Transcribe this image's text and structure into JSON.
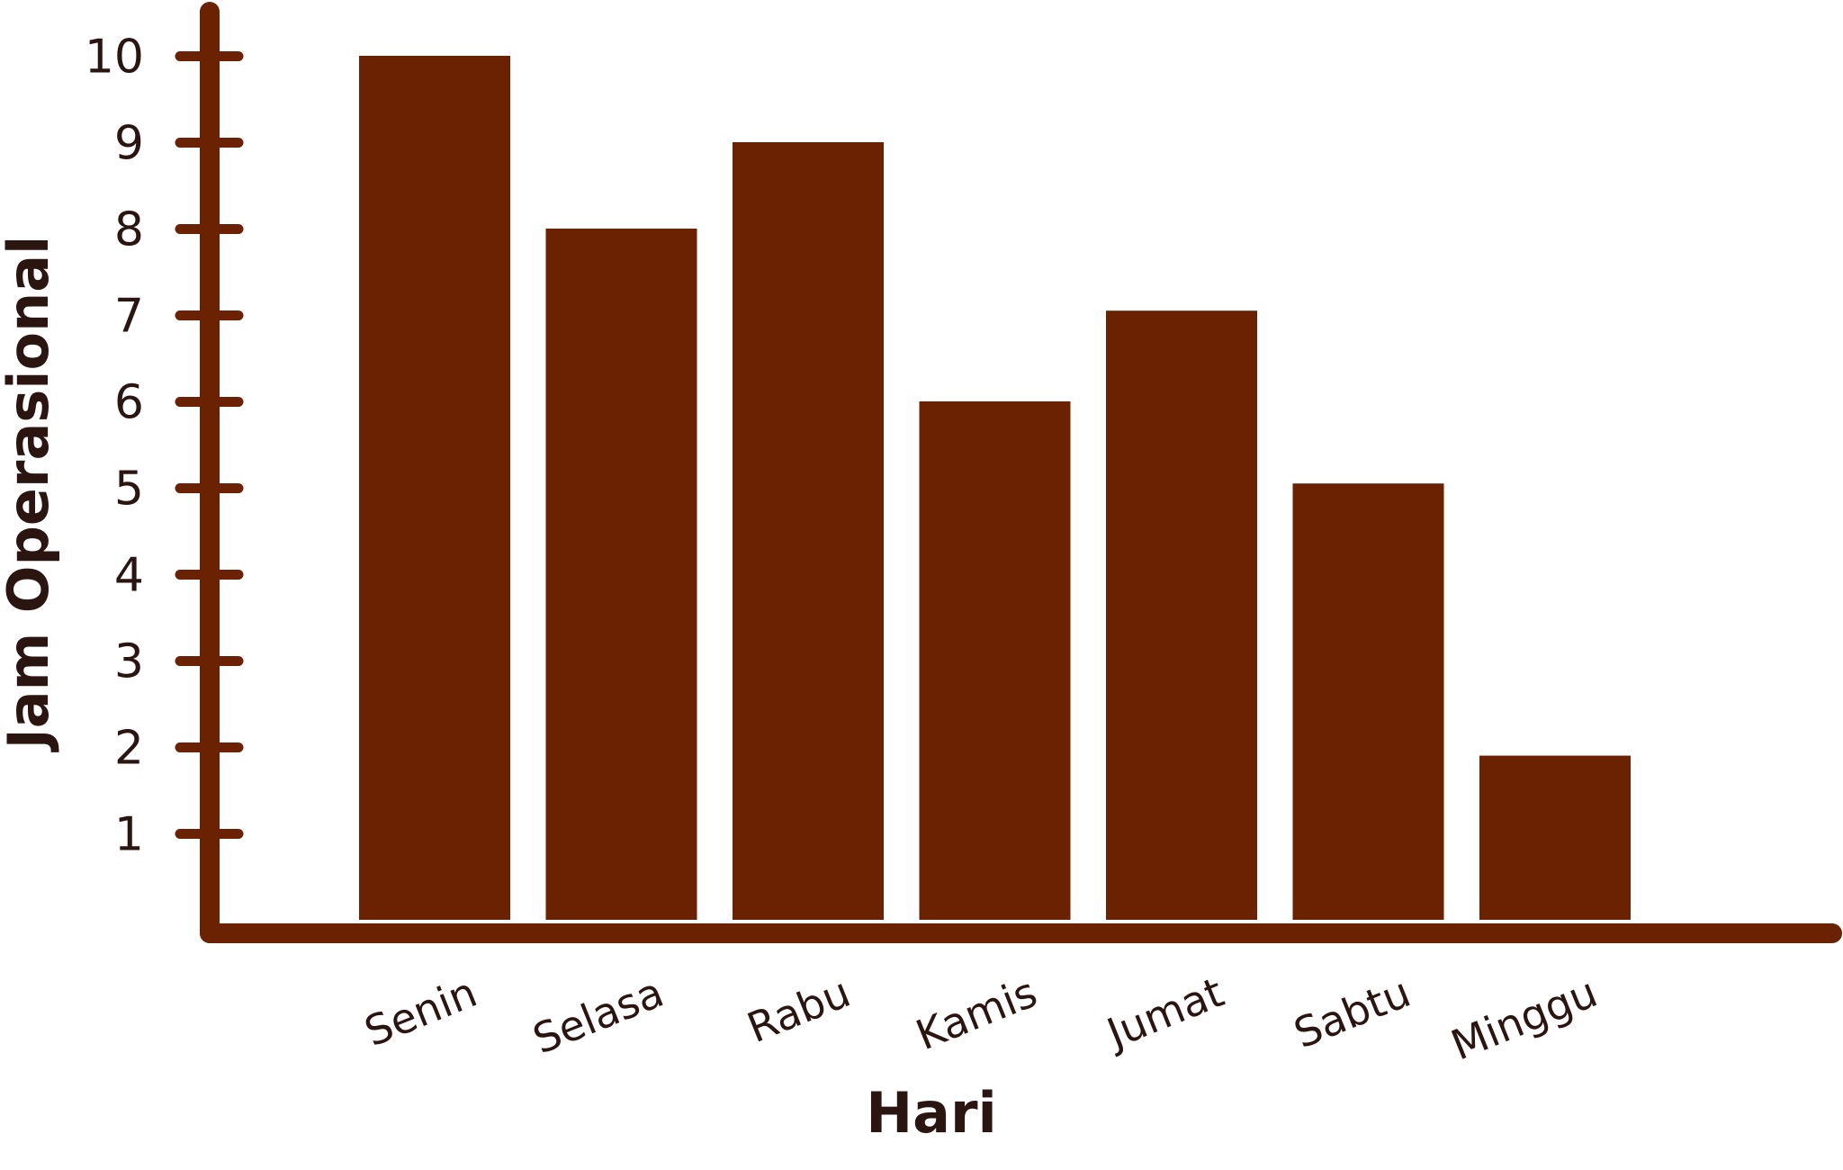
{
  "colors": {
    "bar": "#6b2202",
    "axis": "#6b2202",
    "text": "#2b1510"
  },
  "chart_data": {
    "type": "bar",
    "title": "",
    "xlabel": "Hari",
    "ylabel": "Jam Operasional",
    "categories": [
      "Senin",
      "Selasa",
      "Rabu",
      "Kamis",
      "Jumat",
      "Sabtu",
      "Minggu"
    ],
    "values": [
      10,
      8,
      9,
      6,
      7.05,
      5.05,
      1.9
    ],
    "yticks": [
      1,
      2,
      3,
      4,
      5,
      6,
      7,
      8,
      9,
      10
    ],
    "ylim": [
      0,
      10.85
    ],
    "grid": false,
    "legend": "none"
  }
}
